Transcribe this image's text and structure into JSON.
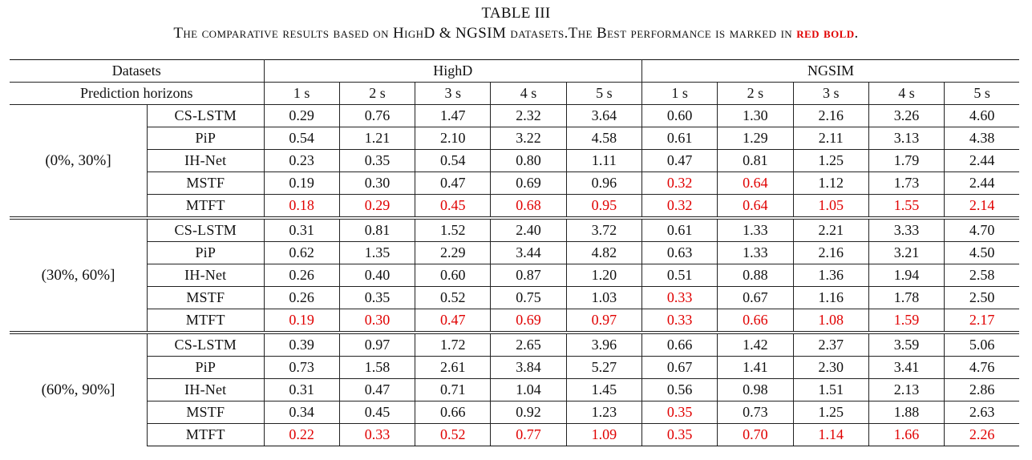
{
  "caption": {
    "label": "TABLE III",
    "title_prefix": "The comparative results based on HighD & NGSIM datasets.The Best performance is marked in ",
    "title_highlight": "red bold",
    "title_suffix": "."
  },
  "header": {
    "datasets_label": "Datasets",
    "dataset_names": [
      "HighD",
      "NGSIM"
    ],
    "horizons_label": "Prediction horizons",
    "horizons": [
      "1 s",
      "2 s",
      "3 s",
      "4 s",
      "5 s",
      "1 s",
      "2 s",
      "3 s",
      "4 s",
      "5 s"
    ]
  },
  "groups": [
    {
      "label": "(0%, 30%]",
      "rows": [
        {
          "model": "CS-LSTM",
          "values": [
            "0.29",
            "0.76",
            "1.47",
            "2.32",
            "3.64",
            "0.60",
            "1.30",
            "2.16",
            "3.26",
            "4.60"
          ],
          "best": []
        },
        {
          "model": "PiP",
          "values": [
            "0.54",
            "1.21",
            "2.10",
            "3.22",
            "4.58",
            "0.61",
            "1.29",
            "2.11",
            "3.13",
            "4.38"
          ],
          "best": []
        },
        {
          "model": "IH-Net",
          "values": [
            "0.23",
            "0.35",
            "0.54",
            "0.80",
            "1.11",
            "0.47",
            "0.81",
            "1.25",
            "1.79",
            "2.44"
          ],
          "best": []
        },
        {
          "model": "MSTF",
          "values": [
            "0.19",
            "0.30",
            "0.47",
            "0.69",
            "0.96",
            "0.32",
            "0.64",
            "1.12",
            "1.73",
            "2.44"
          ],
          "best": [
            5,
            6
          ]
        },
        {
          "model": "MTFT",
          "values": [
            "0.18",
            "0.29",
            "0.45",
            "0.68",
            "0.95",
            "0.32",
            "0.64",
            "1.05",
            "1.55",
            "2.14"
          ],
          "best": [
            0,
            1,
            2,
            3,
            4,
            5,
            6,
            7,
            8,
            9
          ]
        }
      ]
    },
    {
      "label": "(30%, 60%]",
      "rows": [
        {
          "model": "CS-LSTM",
          "values": [
            "0.31",
            "0.81",
            "1.52",
            "2.40",
            "3.72",
            "0.61",
            "1.33",
            "2.21",
            "3.33",
            "4.70"
          ],
          "best": []
        },
        {
          "model": "PiP",
          "values": [
            "0.62",
            "1.35",
            "2.29",
            "3.44",
            "4.82",
            "0.63",
            "1.33",
            "2.16",
            "3.21",
            "4.50"
          ],
          "best": []
        },
        {
          "model": "IH-Net",
          "values": [
            "0.26",
            "0.40",
            "0.60",
            "0.87",
            "1.20",
            "0.51",
            "0.88",
            "1.36",
            "1.94",
            "2.58"
          ],
          "best": []
        },
        {
          "model": "MSTF",
          "values": [
            "0.26",
            "0.35",
            "0.52",
            "0.75",
            "1.03",
            "0.33",
            "0.67",
            "1.16",
            "1.78",
            "2.50"
          ],
          "best": [
            5
          ]
        },
        {
          "model": "MTFT",
          "values": [
            "0.19",
            "0.30",
            "0.47",
            "0.69",
            "0.97",
            "0.33",
            "0.66",
            "1.08",
            "1.59",
            "2.17"
          ],
          "best": [
            0,
            1,
            2,
            3,
            4,
            5,
            6,
            7,
            8,
            9
          ]
        }
      ]
    },
    {
      "label": "(60%, 90%]",
      "rows": [
        {
          "model": "CS-LSTM",
          "values": [
            "0.39",
            "0.97",
            "1.72",
            "2.65",
            "3.96",
            "0.66",
            "1.42",
            "2.37",
            "3.59",
            "5.06"
          ],
          "best": []
        },
        {
          "model": "PiP",
          "values": [
            "0.73",
            "1.58",
            "2.61",
            "3.84",
            "5.27",
            "0.67",
            "1.41",
            "2.30",
            "3.41",
            "4.76"
          ],
          "best": []
        },
        {
          "model": "IH-Net",
          "values": [
            "0.31",
            "0.47",
            "0.71",
            "1.04",
            "1.45",
            "0.56",
            "0.98",
            "1.51",
            "2.13",
            "2.86"
          ],
          "best": []
        },
        {
          "model": "MSTF",
          "values": [
            "0.34",
            "0.45",
            "0.66",
            "0.92",
            "1.23",
            "0.35",
            "0.73",
            "1.25",
            "1.88",
            "2.63"
          ],
          "best": [
            5
          ]
        },
        {
          "model": "MTFT",
          "values": [
            "0.22",
            "0.33",
            "0.52",
            "0.77",
            "1.09",
            "0.35",
            "0.70",
            "1.14",
            "1.66",
            "2.26"
          ],
          "best": [
            0,
            1,
            2,
            3,
            4,
            5,
            6,
            7,
            8,
            9
          ]
        }
      ]
    }
  ],
  "colors": {
    "highlight": "#e00000",
    "text": "#111111"
  }
}
